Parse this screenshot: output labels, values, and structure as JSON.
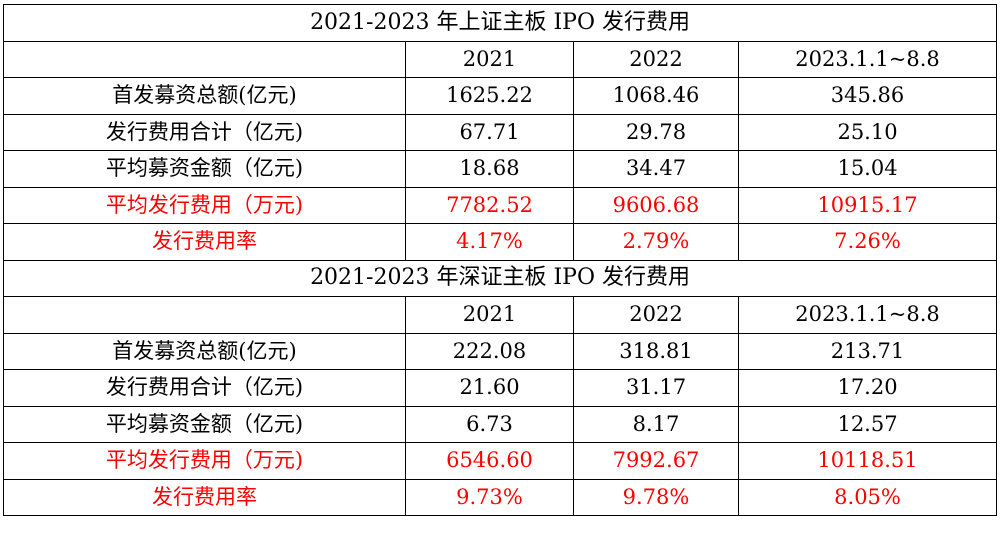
{
  "colors": {
    "text": "#000000",
    "highlight": "#ff0000",
    "border": "#000000",
    "background": "#ffffff"
  },
  "tables": [
    {
      "title": "2021-2023 年上证主板 IPO 发行费用",
      "headers": [
        "",
        "2021",
        "2022",
        "2023.1.1~8.8"
      ],
      "rows": [
        {
          "label": "首发募资总额(亿元)",
          "values": [
            "1625.22",
            "1068.46",
            "345.86"
          ],
          "highlight": false
        },
        {
          "label": "发行费用合计（亿元)",
          "values": [
            "67.71",
            "29.78",
            "25.10"
          ],
          "highlight": false
        },
        {
          "label": "平均募资金额（亿元)",
          "values": [
            "18.68",
            "34.47",
            "15.04"
          ],
          "highlight": false
        },
        {
          "label": "平均发行费用（万元)",
          "values": [
            "7782.52",
            "9606.68",
            "10915.17"
          ],
          "highlight": true
        },
        {
          "label": "发行费用率",
          "values": [
            "4.17%",
            "2.79%",
            "7.26%"
          ],
          "highlight": true
        }
      ]
    },
    {
      "title": "2021-2023 年深证主板 IPO 发行费用",
      "headers": [
        "",
        "2021",
        "2022",
        "2023.1.1~8.8"
      ],
      "rows": [
        {
          "label": "首发募资总额(亿元)",
          "values": [
            "222.08",
            "318.81",
            "213.71"
          ],
          "highlight": false
        },
        {
          "label": "发行费用合计（亿元)",
          "values": [
            "21.60",
            "31.17",
            "17.20"
          ],
          "highlight": false
        },
        {
          "label": "平均募资金额（亿元)",
          "values": [
            "6.73",
            "8.17",
            "12.57"
          ],
          "highlight": false
        },
        {
          "label": "平均发行费用（万元)",
          "values": [
            "6546.60",
            "7992.67",
            "10118.51"
          ],
          "highlight": true
        },
        {
          "label": "发行费用率",
          "values": [
            "9.73%",
            "9.78%",
            "8.05%"
          ],
          "highlight": true
        }
      ]
    }
  ]
}
